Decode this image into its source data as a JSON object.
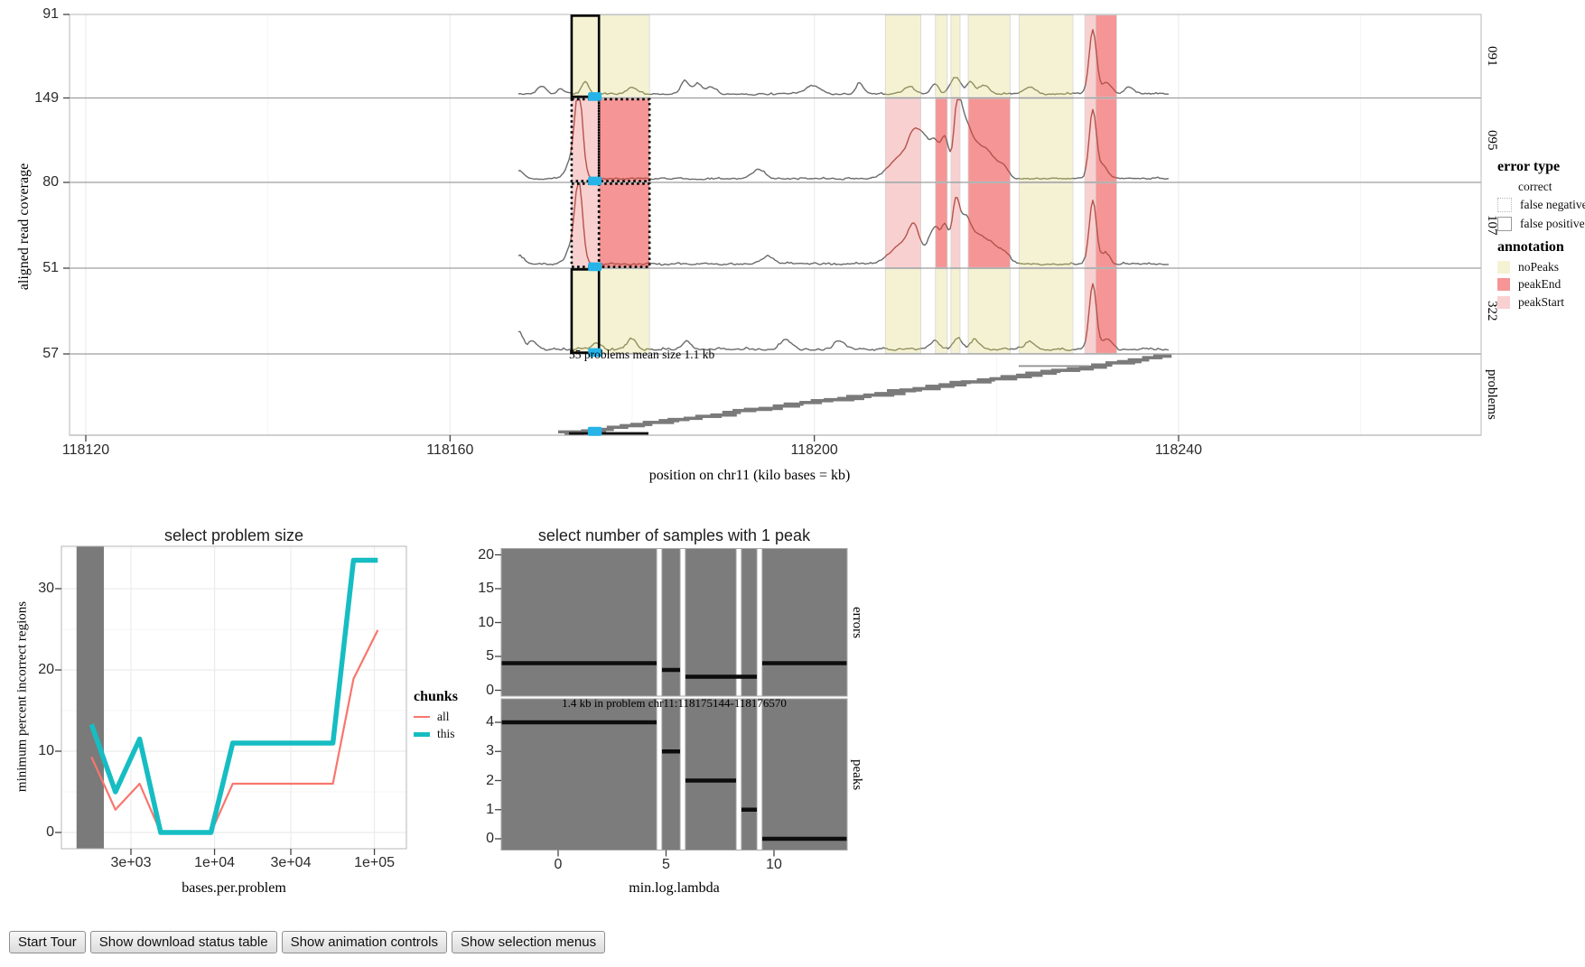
{
  "colors": {
    "noPeaks": "#f5f2d4",
    "peakEnd": "#f59595",
    "peakStart": "#f9d0d0",
    "band_edge": "#d4d4d4",
    "trace": "#6b6b6b",
    "trace_in_noPeaks": "#8f9160",
    "trace_in_peak": "#b3544c",
    "selected_marker": "#25b3e8",
    "selected_outline": "#000000",
    "problems_bar": "#7a7a7a",
    "teal": "#16bdc2",
    "salmon": "#f8766d",
    "selected_band_gray": "#7a7a7a",
    "segment_gray": "#7c7c7c",
    "step_line": "#0d0d0d",
    "facet_line": "#9e9e9e",
    "panel_border": "#b7b7b7",
    "grid_major": "#ececec",
    "grid_minor": "#f5f5f5"
  },
  "chart_data": [
    {
      "id": "coverage",
      "type": "line",
      "title": "",
      "xlabel": "position on chr11 (kilo bases = kb)",
      "ylabel": "aligned read coverage",
      "x_ticks": [
        "118120",
        "118160",
        "118200",
        "118240"
      ],
      "x_tick_values": [
        118120,
        118160,
        118200,
        118240
      ],
      "x_range": [
        118118,
        118273
      ],
      "facets": [
        {
          "label": "091",
          "y_tick": "91",
          "kind": "noPeaks"
        },
        {
          "label": "095",
          "y_tick": "149",
          "kind": "peaks"
        },
        {
          "label": "107",
          "y_tick": "80",
          "kind": "peaks"
        },
        {
          "label": "322",
          "y_tick": "51",
          "kind": "noPeaks"
        },
        {
          "label": "problems",
          "y_tick": "57",
          "kind": "problems"
        }
      ],
      "annotation_regions_kb": [
        {
          "x1": 118173.35,
          "x2": 118176.35,
          "noPeaks_facets": "noPeaks",
          "peak_facets": "peakStart"
        },
        {
          "x1": 118176.35,
          "x2": 118181.9,
          "noPeaks_facets": "noPeaks",
          "peak_facets": "peakEnd"
        },
        {
          "x1": 118207.8,
          "x2": 118211.7,
          "noPeaks_facets": "noPeaks",
          "peak_facets": "peakStart"
        },
        {
          "x1": 118213.3,
          "x2": 118214.6,
          "noPeaks_facets": "noPeaks",
          "peak_facets": "peakEnd"
        },
        {
          "x1": 118215.0,
          "x2": 118216.0,
          "noPeaks_facets": "noPeaks",
          "peak_facets": "peakStart"
        },
        {
          "x1": 118216.9,
          "x2": 118221.5,
          "noPeaks_facets": "noPeaks",
          "peak_facets": "peakEnd"
        },
        {
          "x1": 118222.5,
          "x2": 118228.4,
          "noPeaks_facets": "noPeaks",
          "peak_facets": "noPeaks"
        },
        {
          "x1": 118229.7,
          "x2": 118230.9,
          "noPeaks_facets": "peakStart",
          "peak_facets": "peakStart"
        },
        {
          "x1": 118230.9,
          "x2": 118233.2,
          "noPeaks_facets": "peakEnd",
          "peak_facets": "peakEnd"
        }
      ],
      "selected_problem_kb": {
        "x1": 118173.35,
        "x2": 118176.35
      },
      "false_negative_rects_kb": [
        {
          "x1": 118173.35,
          "x2": 118176.35
        },
        {
          "x1": 118176.35,
          "x2": 118181.9
        }
      ],
      "selected_marker_kb": 118175.9,
      "data_start_kb": 118167.5,
      "data_end_kb": 118239.0,
      "problems_label": "55 problems mean size 1.1 kb"
    },
    {
      "id": "problem_size",
      "type": "line",
      "title": "select problem size",
      "xlabel": "bases.per.problem",
      "ylabel": "minimum percent incorrect regions",
      "x_scale": "log10",
      "x_ticks": [
        "3e+03",
        "1e+04",
        "3e+04",
        "1e+05"
      ],
      "x_tick_values": [
        3000,
        10000,
        30000,
        100000
      ],
      "y_ticks": [
        "0",
        "10",
        "20",
        "30"
      ],
      "y_tick_values": [
        0,
        10,
        20,
        30
      ],
      "selected_band": {
        "x1": 1370,
        "x2": 2030
      },
      "x": [
        1700,
        2400,
        3400,
        4600,
        9500,
        13000,
        55000,
        74000,
        105000
      ],
      "series": [
        {
          "name": "all",
          "color": "#f8766d",
          "width": 2.2,
          "values": [
            9.3,
            2.8,
            6,
            0,
            0,
            6,
            6,
            18.9,
            24.9
          ]
        },
        {
          "name": "this",
          "color": "#16bdc2",
          "width": 5.5,
          "values": [
            13.3,
            5,
            11.5,
            0,
            0,
            11,
            11,
            33.5,
            33.5
          ]
        }
      ],
      "legend_title": "chunks"
    },
    {
      "id": "samples_with_peak",
      "type": "step",
      "title": "select number of samples with 1 peak",
      "xlabel": "min.log.lambda",
      "x_ticks": [
        "0",
        "5",
        "10"
      ],
      "x_tick_values": [
        0,
        5,
        10
      ],
      "x_range": [
        -2.64,
        13.39
      ],
      "segment_breaks": [
        4.56,
        5.65,
        8.24,
        9.2
      ],
      "facets": [
        {
          "label": "errors",
          "y_ticks": [
            "0",
            "5",
            "10",
            "15",
            "20"
          ],
          "y_tick_values": [
            0,
            5,
            10,
            15,
            20
          ],
          "values": [
            4,
            3,
            2,
            2,
            4
          ]
        },
        {
          "label": "peaks",
          "y_ticks": [
            "0",
            "1",
            "2",
            "3",
            "4"
          ],
          "y_tick_values": [
            0,
            1,
            2,
            3,
            4
          ],
          "values": [
            4,
            3,
            2,
            1,
            0
          ]
        }
      ],
      "annotation": "1.4 kb in problem chr11:118175144-118176570"
    }
  ],
  "legends": {
    "error_type": {
      "title": "error type",
      "items": [
        {
          "label": "correct",
          "swatch": "none"
        },
        {
          "label": "false negative",
          "swatch": "dotted-outline"
        },
        {
          "label": "false positive",
          "swatch": "solid-outline"
        }
      ]
    },
    "annotation": {
      "title": "annotation",
      "items": [
        {
          "label": "noPeaks",
          "swatch": "fill",
          "color": "#f5f2d4"
        },
        {
          "label": "peakEnd",
          "swatch": "fill",
          "color": "#f59595"
        },
        {
          "label": "peakStart",
          "swatch": "fill",
          "color": "#f9d0d0"
        }
      ]
    },
    "chunks": {
      "title": "chunks",
      "items": [
        {
          "label": "all",
          "swatch": "line",
          "color": "#f8766d",
          "weight": 2.5
        },
        {
          "label": "this",
          "swatch": "line",
          "color": "#16bdc2",
          "weight": 5.5
        }
      ]
    }
  },
  "toolbar": {
    "buttons": [
      {
        "label": "Start Tour"
      },
      {
        "label": "Show download status table"
      },
      {
        "label": "Show animation controls"
      },
      {
        "label": "Show selection menus"
      }
    ]
  }
}
